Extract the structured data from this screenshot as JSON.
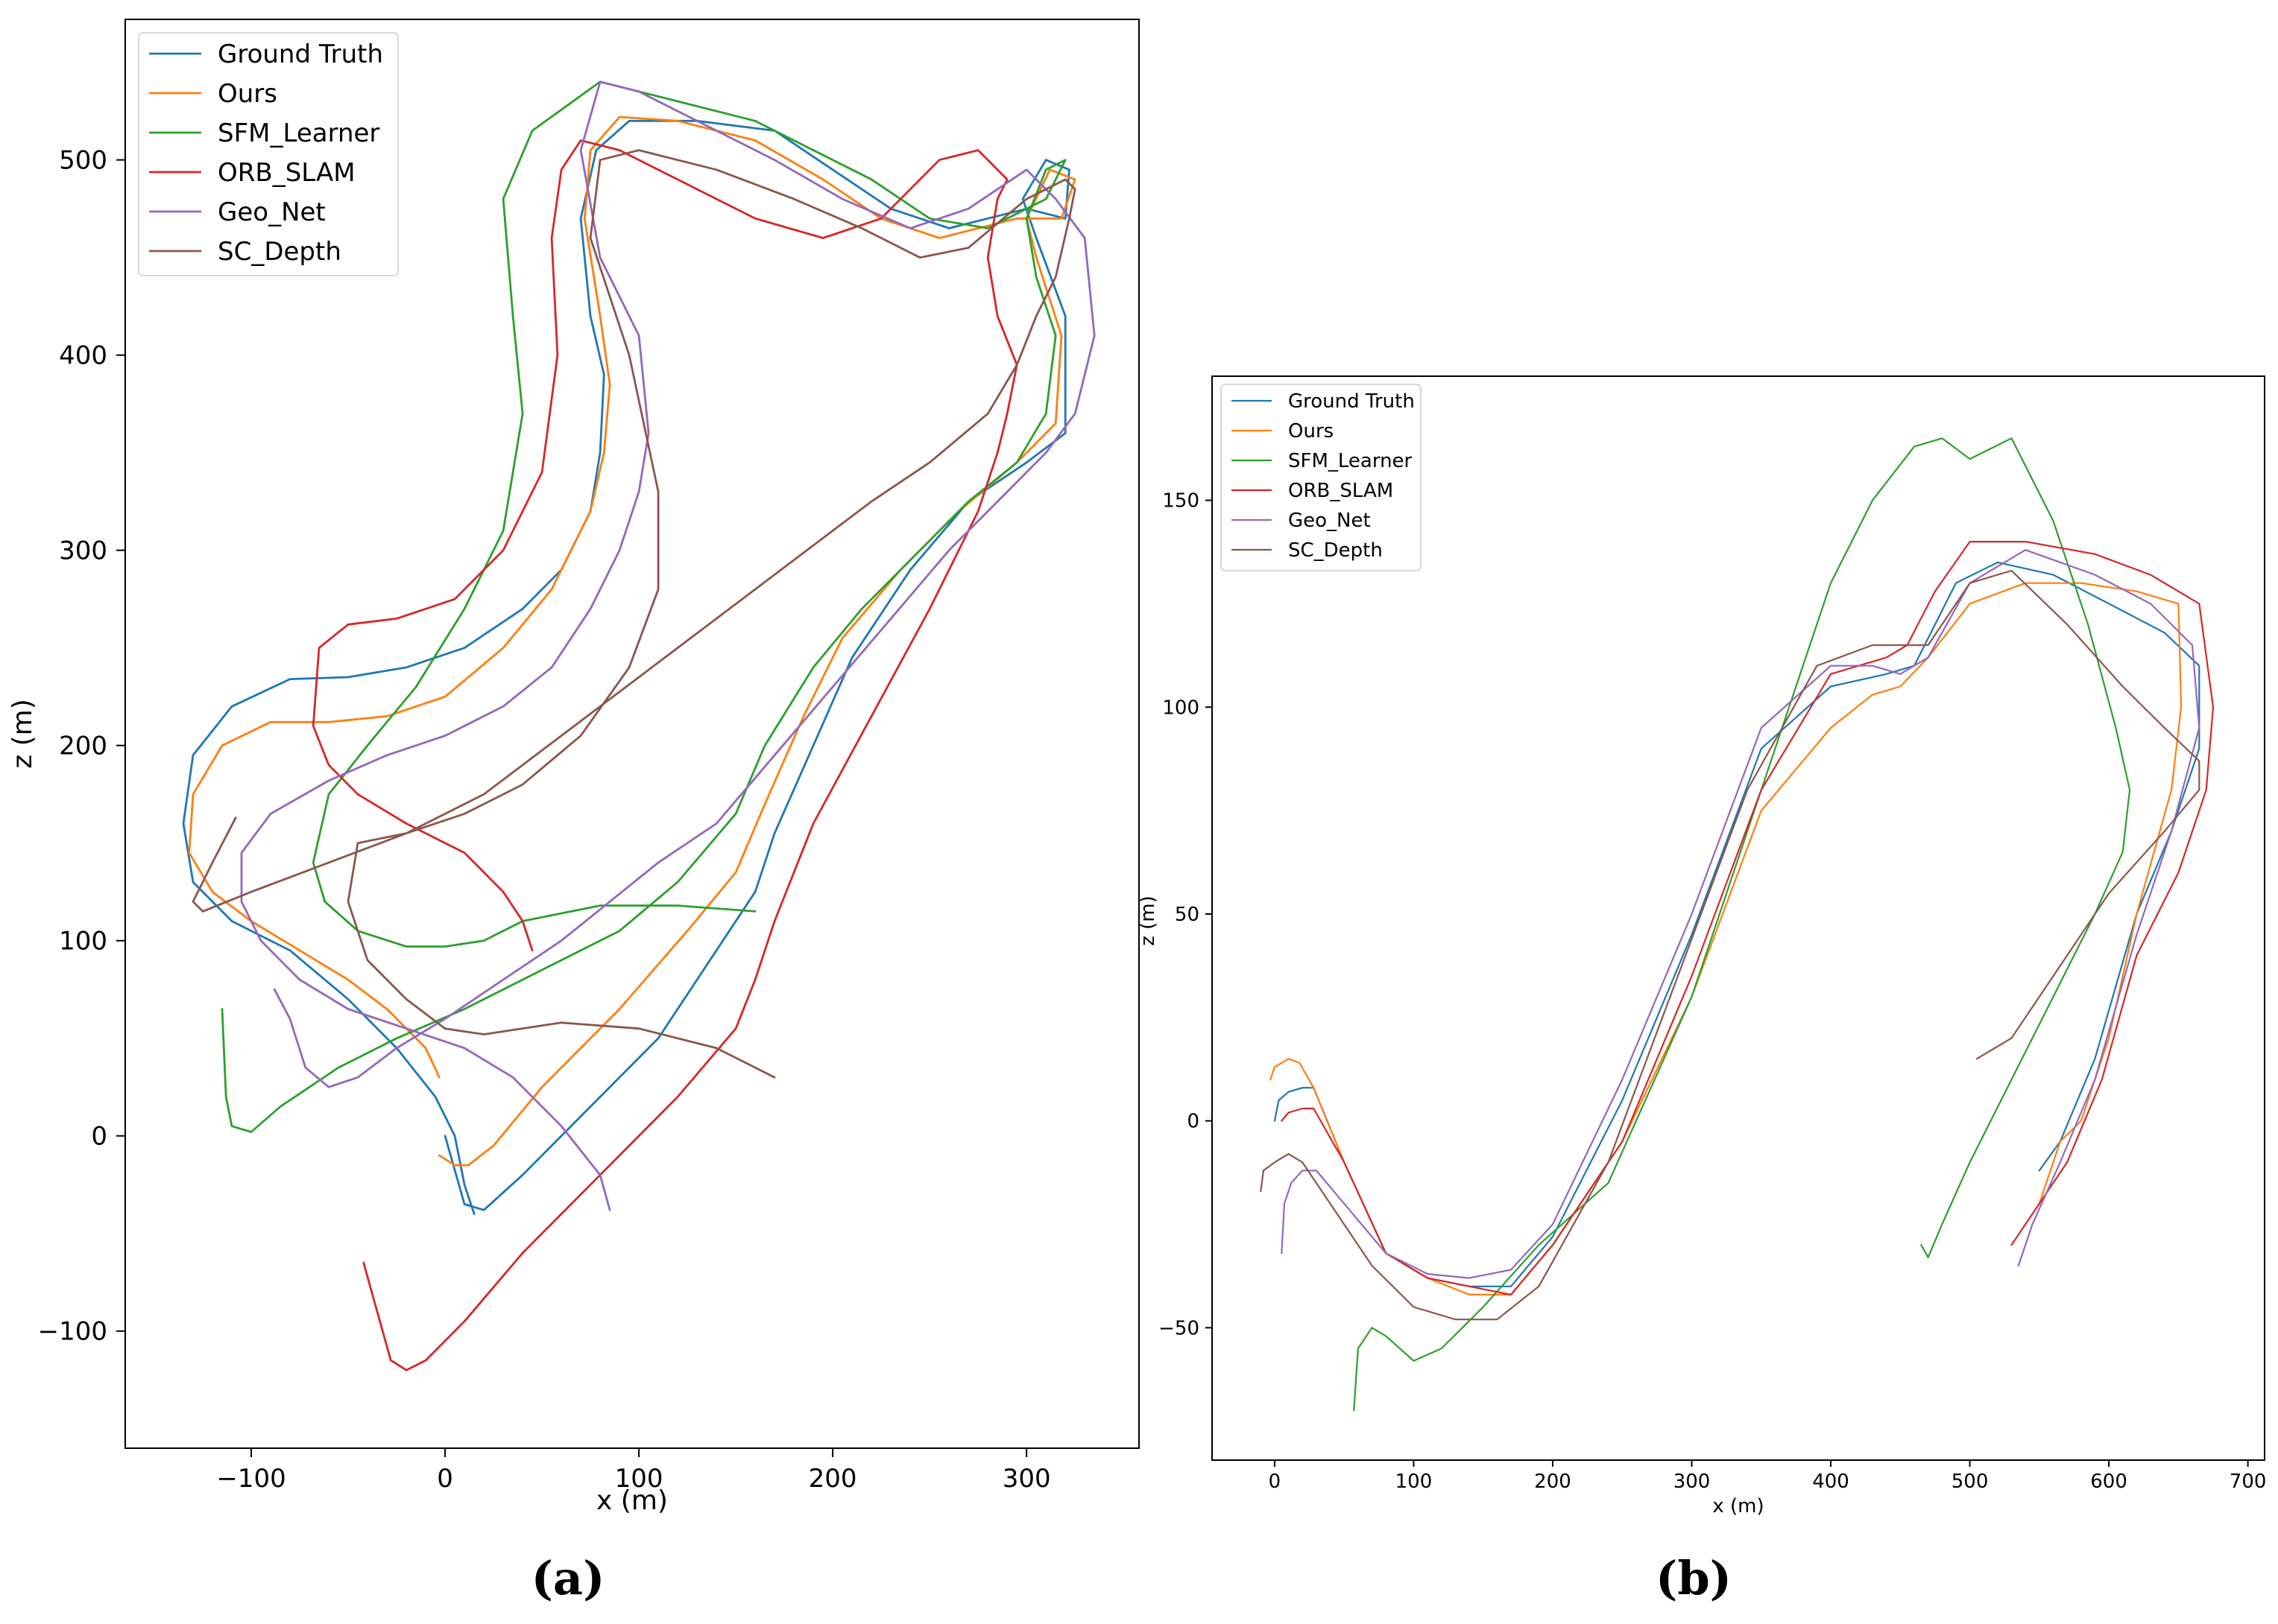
{
  "chart_data": [
    {
      "type": "line",
      "panel_label": "(a)",
      "xlabel": "x (m)",
      "ylabel": "z (m)",
      "xlim": [
        -165,
        358
      ],
      "ylim": [
        -160,
        572
      ],
      "xticks": [
        -100,
        0,
        100,
        200,
        300
      ],
      "xtick_labels": [
        "−100",
        "0",
        "100",
        "200",
        "300"
      ],
      "yticks": [
        -100,
        0,
        100,
        200,
        300,
        400,
        500
      ],
      "ytick_labels": [
        "−100",
        "0",
        "100",
        "200",
        "300",
        "400",
        "500"
      ],
      "grid": false,
      "legend_position": "upper-left",
      "series": [
        {
          "name": "Ground Truth",
          "color": "#1f77b4",
          "x": [
            0,
            10,
            20,
            40,
            70,
            110,
            140,
            160,
            170,
            190,
            210,
            240,
            270,
            300,
            320,
            320,
            305,
            298,
            310,
            322,
            320,
            300,
            260,
            230,
            200,
            170,
            130,
            95,
            78,
            70,
            75,
            82,
            80,
            75,
            60,
            40,
            10,
            -20,
            -50,
            -80,
            -110,
            -130,
            -135,
            -130,
            -110,
            -80,
            -50,
            -25,
            -5,
            5,
            10,
            15
          ],
          "y": [
            0,
            -35,
            -38,
            -20,
            10,
            50,
            95,
            125,
            155,
            200,
            245,
            290,
            325,
            345,
            360,
            420,
            460,
            480,
            500,
            495,
            470,
            475,
            465,
            475,
            495,
            515,
            520,
            520,
            505,
            470,
            420,
            390,
            350,
            320,
            290,
            270,
            250,
            240,
            235,
            234,
            220,
            195,
            160,
            130,
            110,
            95,
            70,
            45,
            20,
            0,
            -25,
            -40
          ]
        },
        {
          "name": "Ours",
          "color": "#ff7f0e",
          "x": [
            -3,
            5,
            12,
            25,
            50,
            90,
            125,
            150,
            165,
            185,
            205,
            235,
            265,
            295,
            315,
            318,
            305,
            300,
            312,
            325,
            318,
            295,
            255,
            225,
            195,
            160,
            120,
            90,
            75,
            72,
            80,
            85,
            82,
            75,
            55,
            30,
            0,
            -30,
            -60,
            -90,
            -115,
            -130,
            -132,
            -120,
            -100,
            -75,
            -50,
            -30,
            -10,
            -3
          ],
          "y": [
            -10,
            -15,
            -15,
            -5,
            25,
            65,
            105,
            135,
            170,
            215,
            255,
            290,
            320,
            345,
            365,
            410,
            450,
            470,
            495,
            490,
            470,
            470,
            460,
            470,
            490,
            510,
            520,
            522,
            505,
            470,
            420,
            385,
            350,
            320,
            280,
            250,
            225,
            215,
            212,
            212,
            200,
            175,
            145,
            125,
            110,
            95,
            80,
            65,
            45,
            30
          ]
        },
        {
          "name": "SFM_Learner",
          "color": "#2ca02c",
          "x": [
            -115,
            -113,
            -110,
            -100,
            -85,
            -55,
            -25,
            10,
            50,
            90,
            120,
            150,
            165,
            190,
            215,
            245,
            270,
            295,
            310,
            315,
            305,
            300,
            310,
            320,
            310,
            280,
            250,
            220,
            190,
            160,
            120,
            80,
            45,
            30,
            35,
            40,
            30,
            10,
            -15,
            -40,
            -60,
            -68,
            -62,
            -45,
            -20,
            0,
            20,
            40,
            80,
            120,
            160
          ],
          "y": [
            65,
            20,
            5,
            2,
            15,
            35,
            50,
            65,
            85,
            105,
            130,
            165,
            200,
            240,
            270,
            300,
            325,
            345,
            370,
            410,
            440,
            470,
            495,
            500,
            480,
            465,
            470,
            490,
            505,
            520,
            530,
            540,
            515,
            480,
            420,
            370,
            310,
            270,
            230,
            200,
            175,
            140,
            120,
            105,
            97,
            97,
            100,
            110,
            118,
            118,
            115
          ]
        },
        {
          "name": "ORB_SLAM",
          "color": "#d62728",
          "x": [
            -42,
            -35,
            -28,
            -20,
            -10,
            10,
            40,
            80,
            120,
            150,
            160,
            170,
            190,
            220,
            250,
            275,
            285,
            290,
            295,
            285,
            280,
            285,
            290,
            275,
            255,
            225,
            195,
            160,
            120,
            90,
            70,
            60,
            55,
            58,
            50,
            30,
            5,
            -25,
            -50,
            -65,
            -68,
            -60,
            -45,
            -20,
            10,
            30,
            40,
            45
          ],
          "y": [
            -65,
            -90,
            -115,
            -120,
            -115,
            -95,
            -60,
            -20,
            20,
            55,
            80,
            110,
            160,
            215,
            270,
            320,
            350,
            370,
            395,
            420,
            450,
            480,
            490,
            505,
            500,
            470,
            460,
            470,
            490,
            505,
            510,
            495,
            460,
            400,
            340,
            300,
            275,
            265,
            262,
            250,
            210,
            190,
            175,
            160,
            145,
            125,
            110,
            95
          ]
        },
        {
          "name": "Geo_Net",
          "color": "#9467bd",
          "x": [
            -88,
            -80,
            -72,
            -60,
            -45,
            -25,
            0,
            30,
            60,
            85,
            110,
            140,
            170,
            200,
            230,
            260,
            290,
            310,
            325,
            335,
            330,
            315,
            300,
            270,
            240,
            205,
            170,
            130,
            100,
            80,
            70,
            80,
            100,
            105,
            100,
            90,
            75,
            55,
            30,
            0,
            -30,
            -60,
            -90,
            -105,
            -105,
            -95,
            -75,
            -50,
            -20,
            10,
            35,
            60,
            80,
            85
          ],
          "y": [
            75,
            60,
            35,
            25,
            30,
            45,
            60,
            80,
            100,
            120,
            140,
            160,
            195,
            230,
            265,
            300,
            330,
            350,
            370,
            410,
            460,
            480,
            495,
            475,
            465,
            480,
            500,
            520,
            535,
            540,
            505,
            450,
            410,
            360,
            330,
            300,
            270,
            240,
            220,
            205,
            195,
            182,
            165,
            145,
            120,
            100,
            80,
            65,
            55,
            45,
            30,
            5,
            -20,
            -38
          ]
        },
        {
          "name": "SC_Depth",
          "color": "#8c564b",
          "x": [
            -108,
            -120,
            -130,
            -125,
            -100,
            -60,
            -20,
            20,
            60,
            100,
            140,
            180,
            220,
            250,
            280,
            295,
            305,
            315,
            322,
            325,
            320,
            300,
            270,
            245,
            215,
            180,
            140,
            100,
            80,
            75,
            95,
            110,
            110,
            95,
            70,
            40,
            10,
            -20,
            -45,
            -50,
            -40,
            -20,
            0,
            20,
            60,
            100,
            140,
            170
          ],
          "y": [
            163,
            140,
            120,
            115,
            125,
            140,
            155,
            175,
            205,
            235,
            265,
            295,
            325,
            345,
            370,
            395,
            420,
            440,
            470,
            485,
            490,
            480,
            455,
            450,
            465,
            480,
            495,
            505,
            500,
            460,
            400,
            330,
            280,
            240,
            205,
            180,
            165,
            155,
            150,
            120,
            90,
            70,
            55,
            52,
            58,
            55,
            45,
            30
          ]
        }
      ]
    },
    {
      "type": "line",
      "panel_label": "(b)",
      "xlabel": "x (m)",
      "ylabel": "z (m)",
      "xlim": [
        -45,
        712
      ],
      "ylim": [
        -82,
        180
      ],
      "xticks": [
        0,
        100,
        200,
        300,
        400,
        500,
        600,
        700
      ],
      "xtick_labels": [
        "0",
        "100",
        "200",
        "300",
        "400",
        "500",
        "600",
        "700"
      ],
      "yticks": [
        -50,
        0,
        50,
        100,
        150
      ],
      "ytick_labels": [
        "−50",
        "0",
        "50",
        "100",
        "150"
      ],
      "grid": false,
      "legend_position": "upper-left",
      "series": [
        {
          "name": "Ground Truth",
          "color": "#1f77b4",
          "x": [
            0,
            3,
            10,
            20,
            28,
            50,
            80,
            110,
            140,
            170,
            200,
            250,
            300,
            350,
            400,
            440,
            460,
            490,
            520,
            560,
            600,
            640,
            665,
            665,
            645,
            620,
            590,
            565,
            550
          ],
          "y": [
            0,
            5,
            7,
            8,
            8,
            -10,
            -32,
            -38,
            -40,
            -40,
            -28,
            5,
            45,
            90,
            105,
            108,
            110,
            130,
            135,
            132,
            125,
            118,
            110,
            90,
            70,
            50,
            15,
            -5,
            -12
          ]
        },
        {
          "name": "Ours",
          "color": "#ff7f0e",
          "x": [
            -3,
            0,
            10,
            18,
            28,
            50,
            80,
            110,
            140,
            170,
            200,
            250,
            300,
            350,
            400,
            430,
            450,
            470,
            500,
            540,
            580,
            620,
            650,
            652,
            645,
            620,
            600,
            580,
            565,
            550
          ],
          "y": [
            10,
            13,
            15,
            14,
            8,
            -10,
            -32,
            -38,
            -42,
            -42,
            -30,
            -5,
            30,
            75,
            95,
            103,
            105,
            112,
            125,
            130,
            130,
            128,
            125,
            100,
            80,
            50,
            20,
            0,
            -5,
            -20
          ]
        },
        {
          "name": "SFM_Learner",
          "color": "#2ca02c",
          "x": [
            57,
            60,
            70,
            80,
            100,
            120,
            150,
            190,
            240,
            300,
            350,
            400,
            430,
            460,
            480,
            500,
            530,
            560,
            585,
            605,
            615,
            610,
            590,
            560,
            530,
            500,
            480,
            470,
            465
          ],
          "y": [
            -70,
            -55,
            -50,
            -52,
            -58,
            -55,
            -45,
            -30,
            -15,
            30,
            80,
            130,
            150,
            163,
            165,
            160,
            165,
            145,
            120,
            95,
            80,
            65,
            50,
            30,
            10,
            -10,
            -25,
            -33,
            -30
          ]
        },
        {
          "name": "ORB_SLAM",
          "color": "#d62728",
          "x": [
            5,
            10,
            20,
            28,
            50,
            80,
            110,
            140,
            170,
            200,
            250,
            300,
            350,
            400,
            440,
            455,
            475,
            500,
            540,
            590,
            630,
            665,
            675,
            670,
            650,
            620,
            595,
            570,
            550,
            530
          ],
          "y": [
            0,
            2,
            3,
            3,
            -10,
            -32,
            -38,
            -40,
            -42,
            -30,
            -5,
            35,
            80,
            108,
            112,
            115,
            128,
            140,
            140,
            137,
            132,
            125,
            100,
            80,
            60,
            40,
            10,
            -10,
            -20,
            -30
          ]
        },
        {
          "name": "Geo_Net",
          "color": "#9467bd",
          "x": [
            5,
            7,
            12,
            20,
            30,
            50,
            80,
            110,
            140,
            170,
            200,
            250,
            300,
            350,
            400,
            430,
            450,
            470,
            500,
            540,
            590,
            630,
            660,
            665,
            645,
            620,
            590,
            565,
            545,
            535
          ],
          "y": [
            -32,
            -20,
            -15,
            -12,
            -12,
            -20,
            -32,
            -37,
            -38,
            -36,
            -25,
            10,
            50,
            95,
            110,
            110,
            108,
            112,
            130,
            138,
            132,
            125,
            115,
            95,
            70,
            45,
            10,
            -10,
            -25,
            -35
          ]
        },
        {
          "name": "SC_Depth",
          "color": "#8c564b",
          "x": [
            -10,
            -8,
            0,
            10,
            20,
            40,
            70,
            100,
            130,
            160,
            190,
            240,
            290,
            340,
            390,
            430,
            450,
            470,
            500,
            530,
            570,
            610,
            640,
            665,
            665,
            640,
            600,
            560,
            530,
            505
          ],
          "y": [
            -17,
            -12,
            -10,
            -8,
            -10,
            -20,
            -35,
            -45,
            -48,
            -48,
            -40,
            -10,
            35,
            80,
            110,
            115,
            115,
            115,
            130,
            133,
            120,
            105,
            95,
            87,
            80,
            70,
            55,
            35,
            20,
            15
          ]
        }
      ]
    }
  ]
}
